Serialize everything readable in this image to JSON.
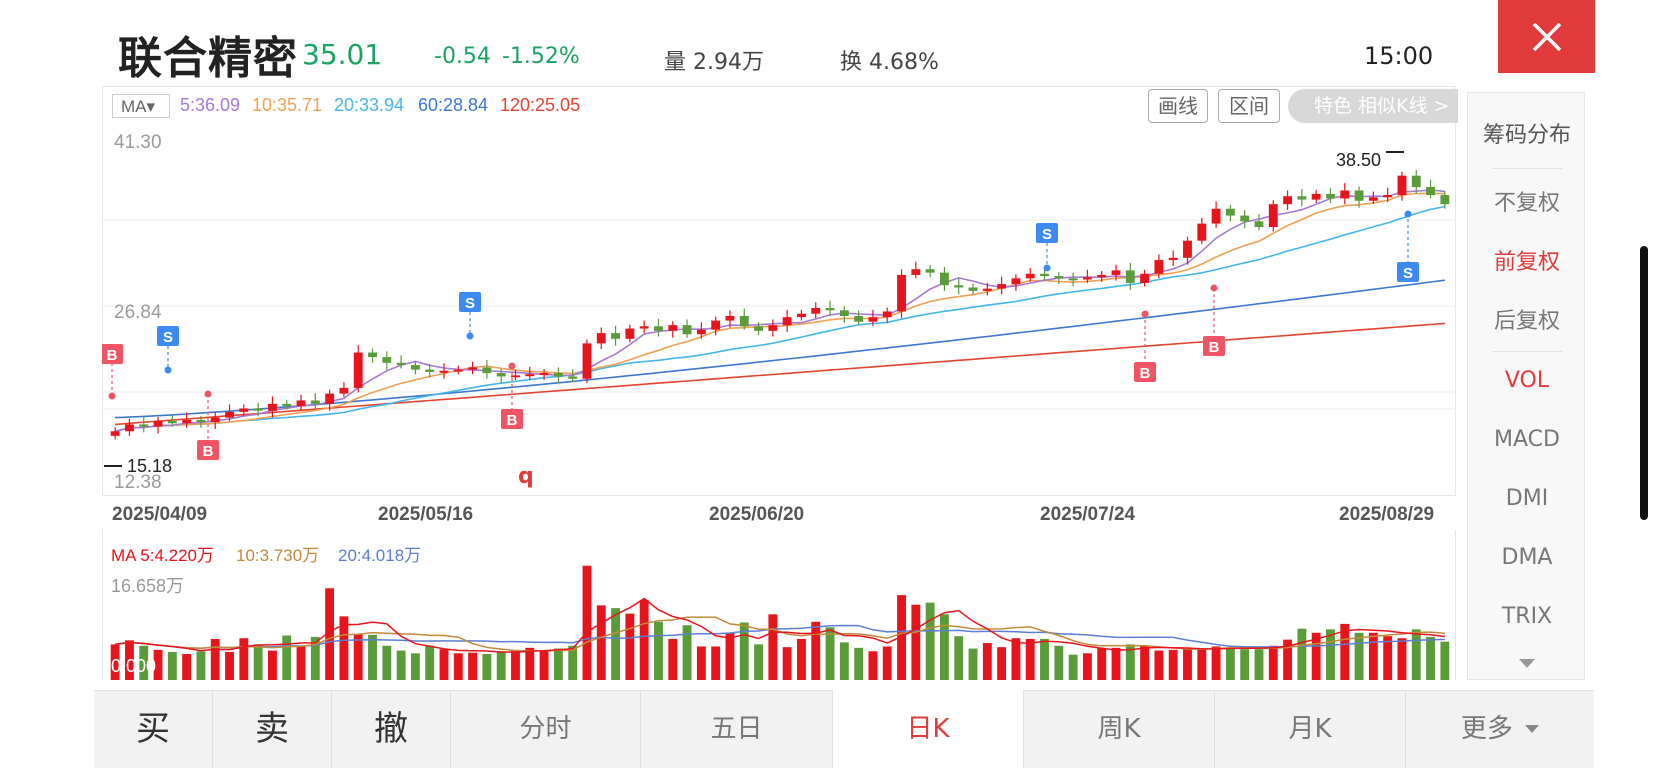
{
  "header": {
    "stock_name": "联合精密",
    "price": "35.01",
    "change": "-0.54",
    "change_pct": "-1.52%",
    "volume": "量 2.94万",
    "turnover": "换 4.68%",
    "time": "15:00"
  },
  "ma_bar": {
    "selector": "MA▾",
    "ma5": "5:36.09",
    "ma10": "10:35.71",
    "ma20": "20:33.94",
    "ma60": "60:28.84",
    "ma120": "120:25.05"
  },
  "tools": {
    "draw_line": "画线",
    "range": "区间",
    "feature": "特色  相似K线 >"
  },
  "y_axis": {
    "top": "41.30",
    "mid": "26.84",
    "bottom": "12.38"
  },
  "extremes": {
    "high": "38.50",
    "low": "15.18"
  },
  "dates": [
    "2025/04/09",
    "2025/05/16",
    "2025/06/20",
    "2025/07/24",
    "2025/08/29"
  ],
  "marker_q": "q",
  "vol_ma": {
    "ma5": "MA 5:4.220万",
    "ma10": "10:3.730万",
    "ma20": "20:4.018万",
    "max": "16.658万",
    "zero": "0.000"
  },
  "right_panel": {
    "chip": "筹码分布",
    "no_adjust": "不复权",
    "forward_adjust": "前复权",
    "backward_adjust": "后复权",
    "vol": "VOL",
    "macd": "MACD",
    "dmi": "DMI",
    "dma": "DMA",
    "trix": "TRIX"
  },
  "bottom_tabs": {
    "buy": "买",
    "sell": "卖",
    "cancel": "撤",
    "intraday": "分时",
    "five_day": "五日",
    "daily_k": "日K",
    "weekly_k": "周K",
    "monthly_k": "月K",
    "more": "更多"
  },
  "colors": {
    "up": "#e8141c",
    "down": "#5a9b3a",
    "ma5": "#a67ad8",
    "ma10": "#f0a055",
    "ma20": "#45b6ea",
    "ma60": "#3d78cf",
    "ma120": "#e2452f",
    "accent": "#e13a3a"
  },
  "chart_data": {
    "type": "candlestick",
    "y_range": [
      12.38,
      41.3
    ],
    "close": [
      15.6,
      16.2,
      16.0,
      16.5,
      16.3,
      16.6,
      16.4,
      16.8,
      17.3,
      17.6,
      17.4,
      18.0,
      17.8,
      18.3,
      18.0,
      18.9,
      19.4,
      22.5,
      22.1,
      21.6,
      21.4,
      21.0,
      20.8,
      20.9,
      21.0,
      21.2,
      20.7,
      20.4,
      20.5,
      20.6,
      20.7,
      20.4,
      20.2,
      23.3,
      24.2,
      23.7,
      24.6,
      24.8,
      24.4,
      24.9,
      24.1,
      24.5,
      25.3,
      25.7,
      24.8,
      24.4,
      24.9,
      25.6,
      25.9,
      26.4,
      26.2,
      25.7,
      25.2,
      25.6,
      26.1,
      29.3,
      29.8,
      29.5,
      28.4,
      28.2,
      27.9,
      28.1,
      28.5,
      29.0,
      29.4,
      29.2,
      29.0,
      28.9,
      29.1,
      29.3,
      29.7,
      28.6,
      29.4,
      30.6,
      30.8,
      32.3,
      33.8,
      35.1,
      34.5,
      34.0,
      33.5,
      35.5,
      36.2,
      35.9,
      36.4,
      36.0,
      36.7,
      35.8,
      36.1,
      36.3,
      38.0,
      37.0,
      36.3,
      35.5
    ],
    "volume": [
      5.2,
      5.8,
      5.0,
      4.4,
      4.1,
      3.8,
      4.2,
      6.0,
      4.1,
      6.1,
      5.2,
      4.3,
      6.5,
      4.9,
      6.3,
      13.4,
      9.3,
      6.7,
      6.6,
      5.0,
      4.3,
      3.9,
      5.0,
      4.5,
      3.9,
      4.0,
      3.8,
      4.2,
      4.4,
      4.7,
      4.2,
      4.6,
      5.0,
      16.7,
      10.9,
      10.5,
      9.7,
      11.7,
      8.5,
      6.0,
      8.0,
      4.9,
      4.9,
      6.9,
      8.4,
      5.2,
      9.6,
      4.8,
      6.0,
      8.5,
      7.7,
      5.5,
      4.7,
      4.2,
      4.9,
      12.4,
      11.0,
      11.3,
      9.6,
      6.4,
      4.6,
      5.4,
      4.8,
      6.1,
      6.0,
      6.0,
      5.0,
      3.7,
      3.9,
      4.6,
      4.7,
      5.2,
      5.0,
      4.3,
      4.4,
      4.5,
      4.6,
      4.9,
      4.7,
      4.5,
      4.5,
      5.0,
      5.9,
      7.5,
      6.9,
      7.4,
      8.2,
      6.9,
      6.9,
      6.4,
      6.1,
      7.4,
      6.3,
      5.6
    ]
  }
}
